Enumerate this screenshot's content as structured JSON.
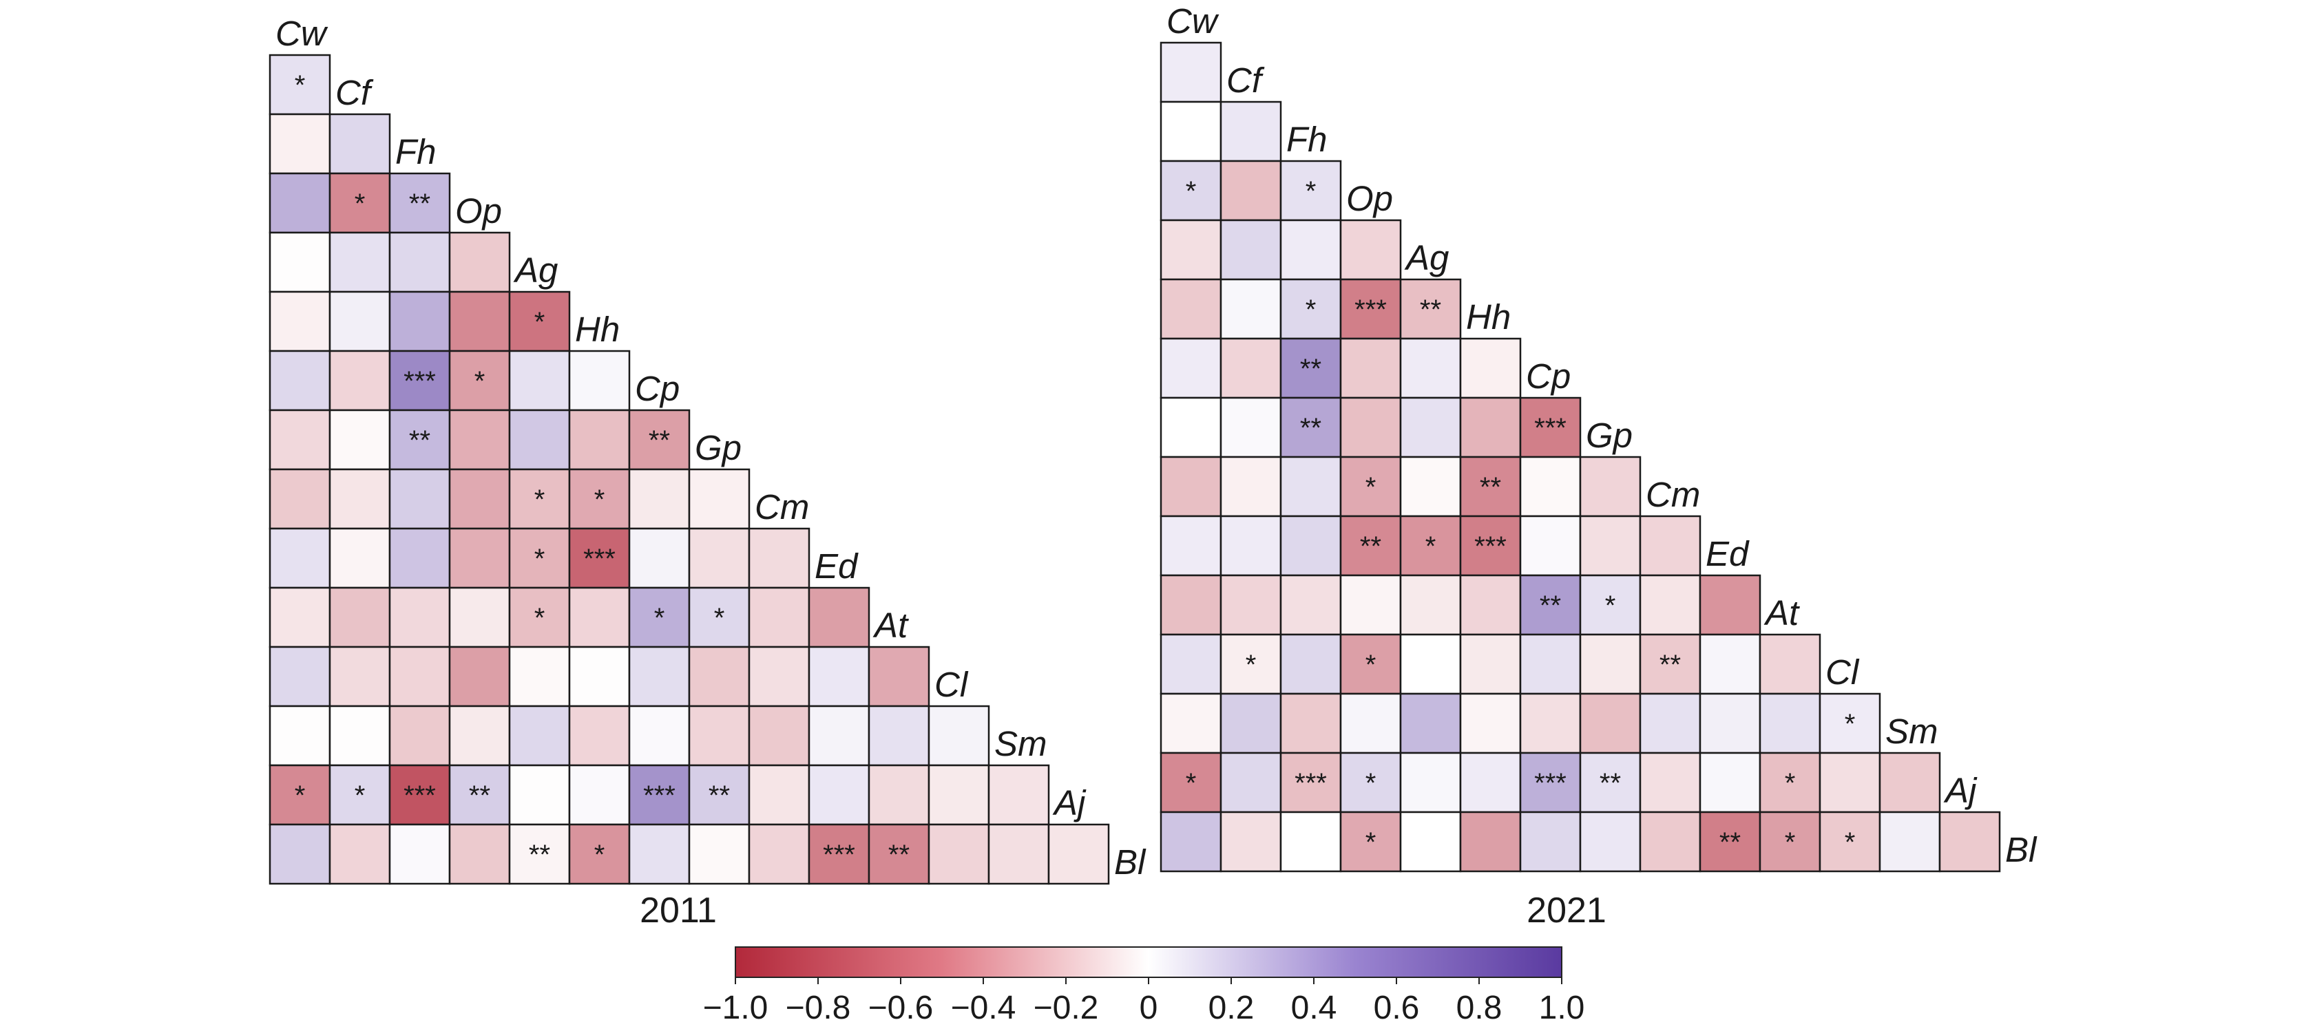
{
  "chart_data": [
    {
      "type": "heatmap",
      "title": "2011",
      "species": [
        "Cw",
        "Cf",
        "Fh",
        "Op",
        "Ag",
        "Hh",
        "Cp",
        "Gp",
        "Cm",
        "Ed",
        "At",
        "Cl",
        "Sm",
        "Aj",
        "Bl"
      ],
      "values": [
        [
          0.15
        ],
        [
          -0.07,
          0.2
        ],
        [
          0.4,
          -0.55,
          0.35
        ],
        [
          -0.01,
          0.15,
          0.2,
          -0.25
        ],
        [
          -0.07,
          0.08,
          0.4,
          -0.55,
          -0.65
        ],
        [
          0.2,
          -0.2,
          0.6,
          -0.45,
          0.15,
          0.04
        ],
        [
          -0.18,
          -0.03,
          0.35,
          -0.38,
          0.28,
          -0.3,
          -0.45
        ],
        [
          -0.25,
          -0.12,
          0.25,
          -0.4,
          -0.3,
          -0.4,
          -0.1,
          -0.07
        ],
        [
          0.15,
          -0.05,
          0.3,
          -0.38,
          -0.35,
          -0.72,
          0.06,
          -0.15,
          -0.17
        ],
        [
          -0.12,
          -0.28,
          -0.18,
          -0.1,
          -0.3,
          -0.2,
          0.4,
          0.2,
          -0.2,
          -0.45
        ],
        [
          0.2,
          -0.17,
          -0.2,
          -0.45,
          -0.03,
          -0.01,
          0.17,
          -0.25,
          -0.15,
          0.12,
          -0.4
        ],
        [
          -0.01,
          -0.01,
          -0.25,
          -0.1,
          0.2,
          -0.2,
          0.03,
          -0.2,
          -0.25,
          0.06,
          0.15,
          0.06
        ],
        [
          -0.55,
          0.2,
          -0.8,
          0.25,
          -0.01,
          0.03,
          0.55,
          0.25,
          -0.12,
          0.12,
          -0.17,
          -0.1,
          -0.13
        ],
        [
          0.25,
          -0.2,
          0.03,
          -0.25,
          -0.05,
          -0.5,
          0.15,
          -0.03,
          -0.2,
          -0.6,
          -0.55,
          -0.2,
          -0.15,
          -0.12
        ]
      ],
      "stars": [
        [
          "*"
        ],
        [
          "",
          ""
        ],
        [
          "",
          "*",
          "**"
        ],
        [
          "",
          "",
          "",
          ""
        ],
        [
          "",
          "",
          "",
          "",
          "*"
        ],
        [
          "",
          "",
          "***",
          "*",
          "",
          ""
        ],
        [
          "",
          "",
          "**",
          "",
          "",
          "",
          "**"
        ],
        [
          "",
          "",
          "",
          "",
          "*",
          "*",
          "",
          ""
        ],
        [
          "",
          "",
          "",
          "",
          "*",
          "***",
          "",
          "",
          ""
        ],
        [
          "",
          "",
          "",
          "",
          "*",
          "",
          "*",
          "*",
          "",
          ""
        ],
        [
          "",
          "",
          "",
          "",
          "",
          "",
          "",
          "",
          "",
          "",
          ""
        ],
        [
          "",
          "",
          "",
          "",
          "",
          "",
          "",
          "",
          "",
          "",
          "",
          ""
        ],
        [
          "*",
          "*",
          "***",
          "**",
          "",
          "",
          "***",
          "**",
          "",
          "",
          "",
          "",
          ""
        ],
        [
          "",
          "",
          "",
          "",
          "**",
          "*",
          "",
          "",
          "",
          "***",
          "**",
          "",
          "",
          ""
        ]
      ]
    },
    {
      "type": "heatmap",
      "title": "2021",
      "species": [
        "Cw",
        "Cf",
        "Fh",
        "Op",
        "Ag",
        "Hh",
        "Cp",
        "Gp",
        "Cm",
        "Ed",
        "At",
        "Cl",
        "Sm",
        "Aj",
        "Bl"
      ],
      "values": [
        [
          0.1
        ],
        [
          0.0,
          0.12
        ],
        [
          0.2,
          -0.3,
          0.15
        ],
        [
          -0.15,
          0.2,
          0.1,
          -0.2
        ],
        [
          -0.25,
          0.04,
          0.2,
          -0.6,
          -0.3
        ],
        [
          0.1,
          -0.2,
          0.55,
          -0.25,
          0.1,
          -0.07
        ],
        [
          0.0,
          0.03,
          0.45,
          -0.3,
          0.15,
          -0.35,
          -0.6
        ],
        [
          -0.3,
          -0.07,
          0.15,
          -0.4,
          -0.03,
          -0.55,
          -0.03,
          -0.2
        ],
        [
          0.1,
          0.1,
          0.2,
          -0.55,
          -0.5,
          -0.6,
          0.03,
          -0.15,
          -0.2
        ],
        [
          -0.3,
          -0.2,
          -0.15,
          -0.05,
          -0.1,
          -0.2,
          0.5,
          0.15,
          -0.12,
          -0.5
        ],
        [
          0.15,
          -0.08,
          0.2,
          -0.45,
          0.0,
          -0.1,
          0.15,
          -0.1,
          -0.25,
          0.05,
          -0.2
        ],
        [
          -0.05,
          0.25,
          -0.25,
          0.05,
          0.35,
          -0.05,
          -0.15,
          -0.3,
          0.15,
          0.08,
          0.15,
          0.1
        ],
        [
          -0.55,
          0.2,
          -0.3,
          0.2,
          0.04,
          0.1,
          0.4,
          0.15,
          -0.15,
          0.04,
          -0.3,
          -0.15,
          -0.25
        ],
        [
          0.3,
          -0.15,
          0.0,
          -0.4,
          0.0,
          -0.45,
          0.2,
          0.12,
          -0.25,
          -0.6,
          -0.45,
          -0.25,
          0.08,
          -0.25
        ]
      ],
      "stars": [
        [
          ""
        ],
        [
          "",
          ""
        ],
        [
          "*",
          "",
          "*"
        ],
        [
          "",
          "",
          "",
          ""
        ],
        [
          "",
          "",
          "*",
          "***",
          "**"
        ],
        [
          "",
          "",
          "**",
          "",
          "",
          ""
        ],
        [
          "",
          "",
          "**",
          "",
          "",
          "",
          "***"
        ],
        [
          "",
          "",
          "",
          "*",
          "",
          "**",
          "",
          ""
        ],
        [
          "",
          "",
          "",
          "**",
          "*",
          "***",
          "",
          "",
          ""
        ],
        [
          "",
          "",
          "",
          "",
          "",
          "",
          "**",
          "*",
          "",
          ""
        ],
        [
          "",
          "*",
          "",
          "*",
          "",
          "",
          "",
          "",
          "**",
          "",
          ""
        ],
        [
          "",
          "",
          "",
          "",
          "",
          "",
          "",
          "",
          "",
          "",
          "",
          "*"
        ],
        [
          "*",
          "",
          "***",
          "*",
          "",
          "",
          "***",
          "**",
          "",
          "",
          "*",
          "",
          ""
        ],
        [
          "",
          "",
          "",
          "*",
          "",
          "",
          "",
          "",
          "",
          "**",
          "*",
          "*",
          "",
          ""
        ]
      ]
    }
  ],
  "colorbar": {
    "ticks": [
      "−1.0",
      "−0.8",
      "−0.6",
      "−0.4",
      "−0.2",
      "0",
      "0.2",
      "0.4",
      "0.6",
      "0.8",
      "1.0"
    ],
    "min": -1.0,
    "max": 1.0,
    "low_color": "#b2293b",
    "mid_color": "#ffffff",
    "high_color": "#5a3aa0"
  }
}
